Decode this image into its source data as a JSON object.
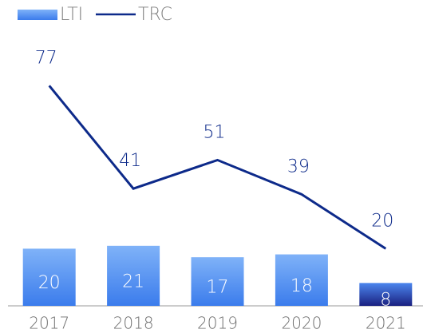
{
  "chart_data": {
    "type": "bar_line",
    "categories": [
      "2017",
      "2018",
      "2019",
      "2020",
      "2021"
    ],
    "ylim": [
      0,
      100
    ],
    "series": [
      {
        "name": "LTI",
        "type": "bar",
        "color": "#4f8ef0",
        "colors": [
          "#4f8ef0",
          "#4f8ef0",
          "#4f8ef0",
          "#4f8ef0",
          "#1a2f9a"
        ],
        "values": [
          20,
          21,
          17,
          18,
          8
        ]
      },
      {
        "name": "TRC",
        "type": "line",
        "color": "#0d2a8a",
        "values": [
          77,
          41,
          51,
          39,
          20
        ]
      }
    ]
  }
}
